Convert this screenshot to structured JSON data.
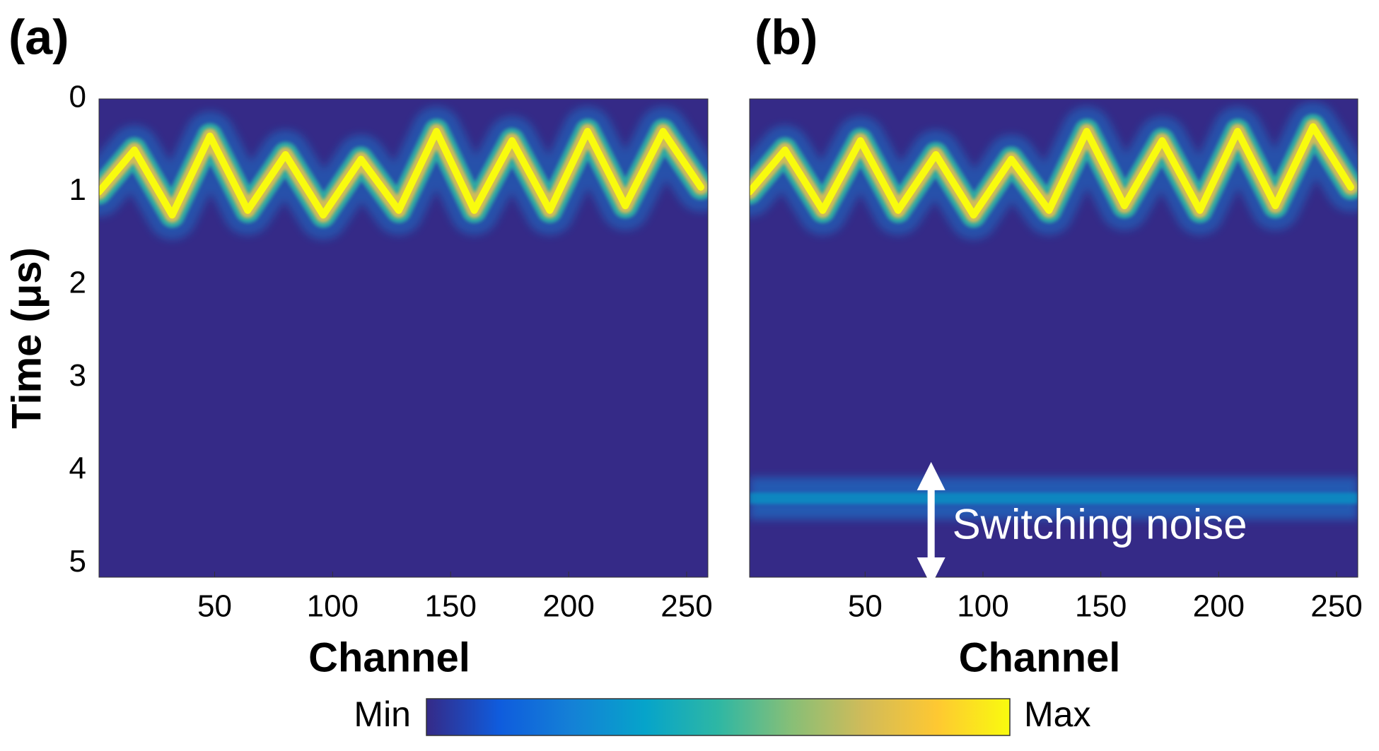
{
  "chart_data": [
    {
      "type": "heatmap",
      "panel_label": "(a)",
      "xlabel": "Channel",
      "ylabel": "Time (μs)",
      "xlim": [
        1,
        259
      ],
      "ylim": [
        0,
        5.15
      ],
      "xticks": [
        50,
        100,
        150,
        200,
        250
      ],
      "yticks": [
        0,
        1,
        2,
        3,
        4,
        5
      ],
      "x": [
        1,
        16,
        32,
        48,
        64,
        80,
        96,
        112,
        128,
        144,
        160,
        176,
        192,
        208,
        224,
        240,
        256
      ],
      "values": [
        1.0,
        0.55,
        1.25,
        0.4,
        1.2,
        0.6,
        1.25,
        0.65,
        1.2,
        0.35,
        1.2,
        0.45,
        1.2,
        0.35,
        1.15,
        0.35,
        0.95
      ]
    },
    {
      "type": "heatmap",
      "panel_label": "(b)",
      "xlabel": "Channel",
      "xlim": [
        1,
        259
      ],
      "ylim": [
        0,
        5.15
      ],
      "xticks": [
        50,
        100,
        150,
        200,
        250
      ],
      "x": [
        1,
        16,
        32,
        48,
        64,
        80,
        96,
        112,
        128,
        144,
        160,
        176,
        192,
        208,
        224,
        240,
        256
      ],
      "values": [
        1.0,
        0.55,
        1.2,
        0.45,
        1.2,
        0.6,
        1.25,
        0.65,
        1.2,
        0.35,
        1.15,
        0.45,
        1.2,
        0.35,
        1.15,
        0.3,
        0.95
      ],
      "bands": [
        4.3
      ],
      "annotation": {
        "text": "Switching noise",
        "x": 78,
        "y": [
          4.0,
          5.15
        ]
      }
    },
    {
      "type": "colorbar",
      "min_label": "Min",
      "max_label": "Max",
      "colors": [
        "#352a87",
        "#0f5cdd",
        "#1481d6",
        "#06a4ca",
        "#2eb7a4",
        "#87bf77",
        "#d1bb59",
        "#fec832",
        "#f9fb0e"
      ]
    }
  ]
}
